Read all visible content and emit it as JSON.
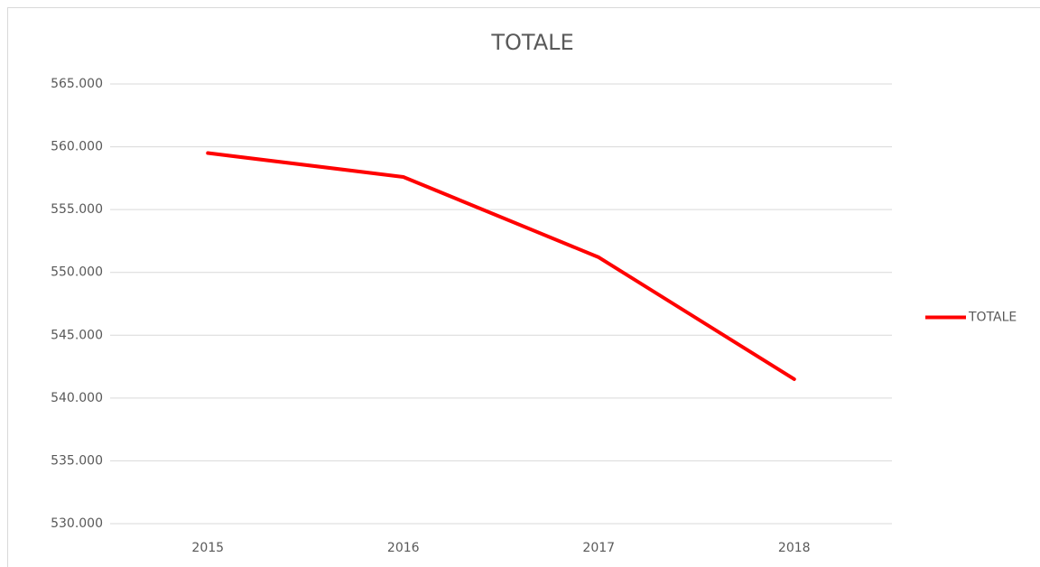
{
  "chart_data": {
    "type": "line",
    "title": "TOTALE",
    "categories": [
      "2015",
      "2016",
      "2017",
      "2018"
    ],
    "series": [
      {
        "name": "TOTALE",
        "color": "#ff0000",
        "values": [
          559500,
          557600,
          551200,
          541500
        ]
      }
    ],
    "ylim": [
      530000,
      565000
    ],
    "yticks": [
      {
        "value": 530000,
        "label": "530.000"
      },
      {
        "value": 535000,
        "label": "535.000"
      },
      {
        "value": 540000,
        "label": "540.000"
      },
      {
        "value": 545000,
        "label": "545.000"
      },
      {
        "value": 550000,
        "label": "550.000"
      },
      {
        "value": 555000,
        "label": "555.000"
      },
      {
        "value": 560000,
        "label": "560.000"
      },
      {
        "value": 565000,
        "label": "565.000"
      }
    ],
    "grid": true,
    "legend": "right"
  }
}
